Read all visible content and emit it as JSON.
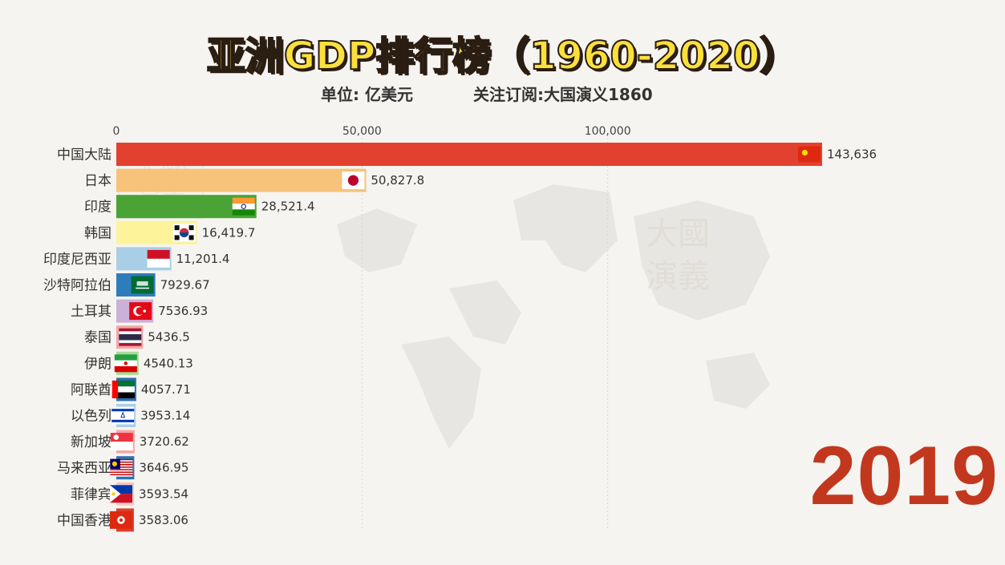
{
  "header": {
    "title": "亚洲GDP排行榜（1960-2020）",
    "unit_label": "单位: 亿美元",
    "follow_label": "关注订阅:大国演义1860"
  },
  "watermark": {
    "text_top": "大國",
    "text_bottom": "演義"
  },
  "year": "2019",
  "colors": {
    "title_fill": "#fbe03c",
    "title_stroke": "#2a1d12",
    "year": "#c2381f",
    "background": "#f6f4f0"
  },
  "chart_data": {
    "type": "bar",
    "orientation": "horizontal",
    "x_ticks": [
      0,
      50000,
      100000
    ],
    "x_tick_labels": [
      "0",
      "50,000",
      "100,000"
    ],
    "xlim": [
      0,
      145000
    ],
    "categories": [
      "中国大陆",
      "日本",
      "印度",
      "韩国",
      "印度尼西亚",
      "沙特阿拉伯",
      "土耳其",
      "泰国",
      "伊朗",
      "阿联酋",
      "以色列",
      "新加坡",
      "马来西亚",
      "菲律宾",
      "中国香港"
    ],
    "values": [
      143636,
      50827.8,
      28521.4,
      16419.7,
      11201.4,
      7929.67,
      7536.93,
      5436.5,
      4540.13,
      4057.71,
      3953.14,
      3720.62,
      3646.95,
      3593.54,
      3583.06
    ],
    "value_labels": [
      "143,636",
      "50,827.8",
      "28,521.4",
      "16,419.7",
      "11,201.4",
      "7929.67",
      "7536.93",
      "5436.5",
      "4540.13",
      "4057.71",
      "3953.14",
      "3720.62",
      "3646.95",
      "3593.54",
      "3583.06"
    ],
    "bar_colors": [
      "#e3412f",
      "#f7c27a",
      "#4ba336",
      "#fdf39a",
      "#a9cfe6",
      "#2f7cbd",
      "#cbb1d7",
      "#f3a7a4",
      "#a6db97",
      "#2b6fae",
      "#a9cfe6",
      "#f6a6a6",
      "#2c73b3",
      "#f2c9c0",
      "#d9402c"
    ],
    "flags": [
      "china-flag",
      "japan-flag",
      "india-flag",
      "korea-flag",
      "indonesia-flag",
      "saudi-flag",
      "turkey-flag",
      "thailand-flag",
      "iran-flag",
      "uae-flag",
      "israel-flag",
      "singapore-flag",
      "malaysia-flag",
      "philippines-flag",
      "hongkong-flag"
    ]
  }
}
